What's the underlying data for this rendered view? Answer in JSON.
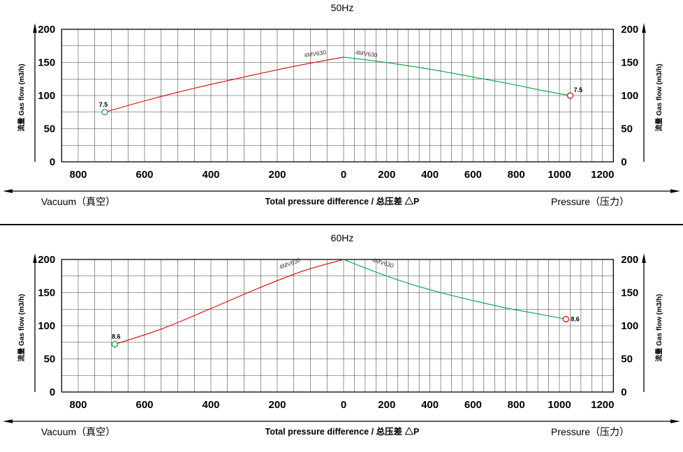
{
  "sheet": {
    "background": "#ffffff",
    "divider_color": "#000000"
  },
  "chart_data": [
    {
      "type": "line",
      "title": "50Hz",
      "ylabel": "流量 Gas flow (m3/h)",
      "xlabel_left": "Vacuum（真空）",
      "xlabel_center": "Total pressure difference / 总压差 △P",
      "xlabel_right": "Pressure（压力）",
      "ylim": [
        0,
        200
      ],
      "y_ticks": [
        200,
        150,
        100,
        50,
        0
      ],
      "x_ticks_vacuum": [
        800,
        600,
        400,
        200
      ],
      "x_ticks_pressure": [
        0,
        200,
        400,
        600,
        800,
        1000,
        1200
      ],
      "vacuum_axis_max": 800,
      "pressure_axis_max": 1200,
      "grid": true,
      "grid_step_x": 50,
      "grid_step_y": 25,
      "series": [
        {
          "name": "4MV630",
          "side": "vacuum",
          "color": "#e60000",
          "points": [
            [
              720,
              75
            ],
            [
              600,
              92
            ],
            [
              450,
              111
            ],
            [
              300,
              128
            ],
            [
              150,
              144
            ],
            [
              0,
              158
            ]
          ],
          "label": {
            "text": "4MV630",
            "at": [
              85,
              160
            ],
            "angle": -8
          },
          "marker": {
            "at": [
              720,
              75
            ],
            "color": "#00a33e",
            "label": "7.5",
            "label_anchor": "middle",
            "label_offset": [
              -2,
              -8
            ]
          }
        },
        {
          "name": "4MV630",
          "side": "pressure",
          "color": "#00a33e",
          "points": [
            [
              0,
              158
            ],
            [
              150,
              152
            ],
            [
              300,
              145
            ],
            [
              450,
              137
            ],
            [
              600,
              128
            ],
            [
              750,
              119
            ],
            [
              900,
              109
            ],
            [
              1050,
              100
            ]
          ],
          "label": {
            "text": "4MV630",
            "at": [
              105,
              160
            ],
            "angle": 8
          },
          "marker": {
            "at": [
              1050,
              100
            ],
            "color": "#e60000",
            "label": "7.5",
            "label_anchor": "start",
            "label_offset": [
              5,
              -5
            ]
          }
        }
      ]
    },
    {
      "type": "line",
      "title": "60Hz",
      "ylabel": "流量 Gas flow (m3/h)",
      "xlabel_left": "Vacuum（真空）",
      "xlabel_center": "Total pressure difference / 总压差 △P",
      "xlabel_right": "Pressure（压力）",
      "ylim": [
        0,
        200
      ],
      "y_ticks": [
        200,
        150,
        100,
        50,
        0
      ],
      "x_ticks_vacuum": [
        800,
        600,
        400,
        200
      ],
      "x_ticks_pressure": [
        0,
        200,
        400,
        600,
        800,
        1000,
        1200
      ],
      "vacuum_axis_max": 800,
      "pressure_axis_max": 1200,
      "grid": true,
      "grid_step_x": 50,
      "grid_step_y": 25,
      "series": [
        {
          "name": "4MV630",
          "side": "vacuum",
          "color": "#e60000",
          "points": [
            [
              690,
              72
            ],
            [
              550,
              95
            ],
            [
              400,
              126
            ],
            [
              250,
              158
            ],
            [
              120,
              183
            ],
            [
              0,
              200
            ]
          ],
          "label": {
            "text": "4MV630",
            "at": [
              160,
              191
            ],
            "angle": -20
          },
          "marker": {
            "at": [
              690,
              72
            ],
            "color": "#00a33e",
            "label": "8.6",
            "label_anchor": "middle",
            "label_offset": [
              2,
              -8
            ]
          }
        },
        {
          "name": "4MV630",
          "side": "pressure",
          "color": "#00a33e",
          "points": [
            [
              0,
              200
            ],
            [
              150,
              181
            ],
            [
              300,
              164
            ],
            [
              450,
              150
            ],
            [
              600,
              138
            ],
            [
              750,
              127
            ],
            [
              900,
              118
            ],
            [
              1030,
              110
            ]
          ],
          "label": {
            "text": "4MV630",
            "at": [
              180,
              192
            ],
            "angle": 16
          },
          "marker": {
            "at": [
              1030,
              110
            ],
            "color": "#e60000",
            "label": "8.6",
            "label_anchor": "start",
            "label_offset": [
              7,
              3
            ]
          }
        }
      ]
    }
  ]
}
